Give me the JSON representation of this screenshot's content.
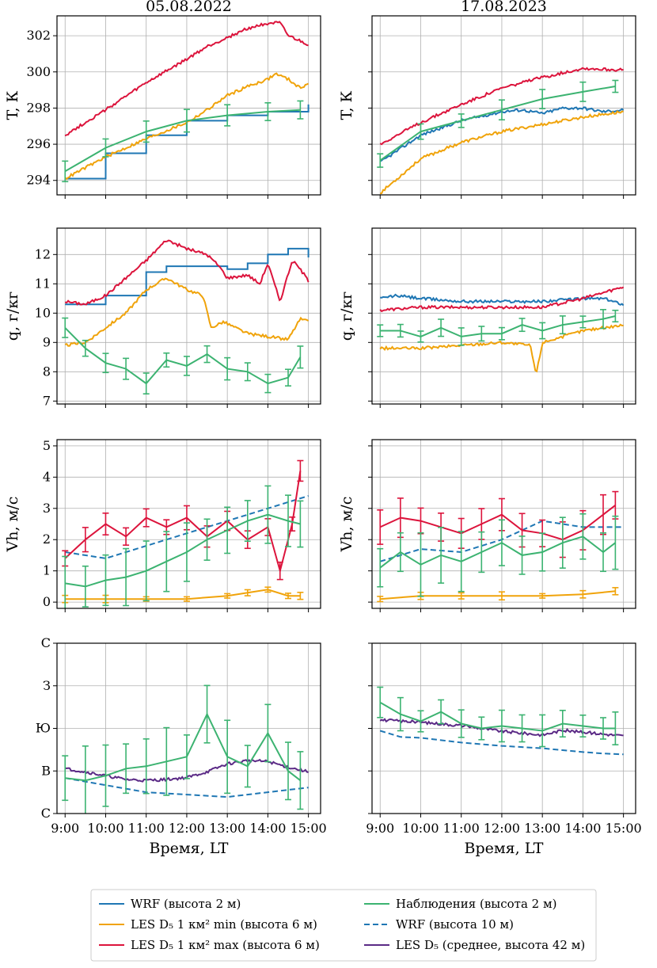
{
  "figure": {
    "columns": [
      "05.08.2022",
      "17.08.2023"
    ],
    "xlabel": "Время, LT",
    "x_ticks": [
      "9:00",
      "10:00",
      "11:00",
      "12:00",
      "13:00",
      "14:00",
      "15:00"
    ]
  },
  "colors": {
    "wrf": "#1f77b4",
    "les_min": "#f0a30a",
    "les_max": "#dc143c",
    "obs": "#3cb371",
    "les_mean": "#5b2a86",
    "grid": "#b0b0b0"
  },
  "legend": {
    "items": [
      {
        "key": "wrf",
        "label": "WRF (высота 2 м)",
        "style": "solid"
      },
      {
        "key": "les_min",
        "label": "LES D₅ 1 км² min (высота 6 м)",
        "style": "solid"
      },
      {
        "key": "les_max",
        "label": "LES D₅ 1 км² max (высота 6 м)",
        "style": "solid"
      },
      {
        "key": "obs",
        "label": "Наблюдения (высота 2 м)",
        "style": "solid"
      },
      {
        "key": "wrf10",
        "label": "WRF (высота 10 м)",
        "style": "dashed"
      },
      {
        "key": "les_mean",
        "label": "LES D₅ (среднее, высота 42 м)",
        "style": "solid"
      }
    ]
  },
  "rows": [
    {
      "ylabel": "T, К",
      "yticks": [
        "294",
        "296",
        "298",
        "300",
        "302"
      ]
    },
    {
      "ylabel": "q, г/кг",
      "yticks": [
        "7",
        "8",
        "9",
        "10",
        "11",
        "12"
      ]
    },
    {
      "ylabel": "Vh, м/с",
      "yticks": [
        "0",
        "1",
        "2",
        "3",
        "4",
        "5"
      ]
    },
    {
      "ylabel": "",
      "yticks": [
        "С",
        "В",
        "Ю",
        "З",
        "С"
      ]
    }
  ],
  "chart_data": [
    {
      "type": "line",
      "title": "05.08.2022",
      "ylabel": "T, К",
      "ylim": [
        293.2,
        303.1
      ],
      "xlim": [
        8.8,
        15.3
      ],
      "series": [
        {
          "name": "WRF (высота 2 м)",
          "key": "wrf",
          "style": "step",
          "x": [
            9,
            10,
            11,
            12,
            13,
            14,
            15
          ],
          "y": [
            294.1,
            295.5,
            296.5,
            297.3,
            297.6,
            297.8,
            298.2
          ]
        },
        {
          "name": "LES D₅ 1 км² min (высота 6 м)",
          "key": "les_min",
          "x": [
            9,
            10,
            11,
            12,
            12.5,
            13,
            13.5,
            14,
            14.2,
            14.5,
            14.8,
            15
          ],
          "y": [
            294.1,
            295.3,
            296.3,
            297.2,
            297.9,
            298.7,
            299.2,
            299.6,
            299.9,
            299.6,
            299.1,
            299.4
          ]
        },
        {
          "name": "LES D₅ 1 км² max (высота 6 м)",
          "key": "les_max",
          "x": [
            9,
            10,
            11,
            12,
            12.5,
            13,
            13.5,
            14,
            14.3,
            14.5,
            14.8,
            15
          ],
          "y": [
            296.5,
            297.9,
            299.4,
            300.7,
            301.4,
            301.9,
            302.4,
            302.7,
            302.7,
            302.0,
            301.7,
            301.5
          ]
        },
        {
          "name": "Наблюдения (высота 2 м)",
          "key": "obs",
          "errorbars": true,
          "x": [
            9,
            10,
            11,
            12,
            13,
            14,
            14.8
          ],
          "y": [
            294.5,
            295.8,
            296.7,
            297.3,
            297.6,
            297.8,
            297.9
          ],
          "err": 0.5
        }
      ]
    },
    {
      "type": "line",
      "title": "17.08.2023",
      "ylabel": "T, К",
      "ylim": [
        293.2,
        303.1
      ],
      "xlim": [
        8.8,
        15.3
      ],
      "series": [
        {
          "name": "WRF (высота 2 м)",
          "key": "wrf",
          "x": [
            9,
            10,
            11,
            12,
            12.5,
            13,
            13.5,
            14,
            14.5,
            15
          ],
          "y": [
            295.0,
            296.5,
            297.3,
            297.8,
            297.9,
            297.7,
            298.0,
            298.0,
            297.8,
            297.9
          ]
        },
        {
          "name": "LES D₅ 1 км² min (высота 6 м)",
          "key": "les_min",
          "x": [
            9,
            10,
            11,
            12,
            13,
            14,
            15
          ],
          "y": [
            293.3,
            295.2,
            296.1,
            296.7,
            297.1,
            297.5,
            297.8
          ]
        },
        {
          "name": "LES D₅ 1 км² max (высота 6 м)",
          "key": "les_max",
          "x": [
            9,
            10,
            11,
            12,
            13,
            14,
            15
          ],
          "y": [
            296.0,
            297.2,
            298.2,
            299.1,
            299.7,
            300.2,
            300.1
          ]
        },
        {
          "name": "Наблюдения (высота 2 м)",
          "key": "obs",
          "errorbars": true,
          "x": [
            9,
            10,
            11,
            12,
            13,
            14,
            14.8
          ],
          "y": [
            295.1,
            296.7,
            297.3,
            297.9,
            298.5,
            298.9,
            299.2
          ],
          "err": 0.45
        }
      ]
    },
    {
      "type": "line",
      "ylabel": "q, г/кг",
      "ylim": [
        6.9,
        12.9
      ],
      "xlim": [
        8.8,
        15.3
      ],
      "series": [
        {
          "name": "WRF (высота 2 м)",
          "key": "wrf",
          "style": "step",
          "x": [
            9,
            10,
            11,
            11.5,
            12,
            13,
            13.5,
            14,
            14.5,
            15
          ],
          "y": [
            10.3,
            10.6,
            11.4,
            11.6,
            11.6,
            11.5,
            11.7,
            12.0,
            12.2,
            11.9
          ]
        },
        {
          "name": "LES D₅ 1 км² min (высота 6 м)",
          "key": "les_min",
          "x": [
            9,
            9.5,
            10,
            10.5,
            11,
            11.5,
            12,
            12.4,
            12.6,
            12.9,
            13.2,
            13.5,
            14,
            14.5,
            14.8,
            15
          ],
          "y": [
            8.9,
            9.0,
            9.5,
            10.0,
            10.8,
            11.2,
            10.8,
            10.6,
            9.5,
            9.7,
            9.5,
            9.3,
            9.2,
            9.1,
            9.8,
            9.7
          ]
        },
        {
          "name": "LES D₅ 1 км² max (высота 6 м)",
          "key": "les_max",
          "x": [
            9,
            9.5,
            10,
            10.5,
            11,
            11.5,
            12,
            12.5,
            12.8,
            13,
            13.5,
            13.8,
            14,
            14.3,
            14.6,
            14.8,
            15
          ],
          "y": [
            10.4,
            10.3,
            10.6,
            11.2,
            11.8,
            12.5,
            12.2,
            12.0,
            11.6,
            11.2,
            11.3,
            11.0,
            11.7,
            10.4,
            11.8,
            11.5,
            11.1
          ]
        },
        {
          "name": "Наблюдения (высота 2 м)",
          "key": "obs",
          "errorbars": true,
          "x": [
            9,
            9.5,
            10,
            10.5,
            11,
            11.5,
            12,
            12.5,
            13,
            13.5,
            14,
            14.5,
            14.8
          ],
          "y": [
            9.5,
            8.8,
            8.3,
            8.1,
            7.6,
            8.4,
            8.2,
            8.6,
            8.1,
            8.0,
            7.6,
            7.8,
            8.5
          ],
          "err": 0.3
        }
      ]
    },
    {
      "type": "line",
      "ylabel": "q, г/кг",
      "ylim": [
        6.9,
        12.9
      ],
      "xlim": [
        8.8,
        15.3
      ],
      "series": [
        {
          "name": "WRF (высота 2 м)",
          "key": "wrf",
          "x": [
            9,
            9.4,
            10,
            11,
            12,
            13,
            14,
            14.5,
            15
          ],
          "y": [
            10.5,
            10.6,
            10.5,
            10.4,
            10.4,
            10.4,
            10.5,
            10.5,
            10.3
          ]
        },
        {
          "name": "LES D₅ 1 км² min (высота 6 м)",
          "key": "les_min",
          "x": [
            9,
            10,
            11,
            12,
            12.7,
            12.85,
            13,
            14,
            15
          ],
          "y": [
            8.8,
            8.8,
            8.9,
            9.0,
            8.9,
            7.9,
            9.0,
            9.4,
            9.6
          ]
        },
        {
          "name": "LES D₅ 1 км² max (высота 6 м)",
          "key": "les_max",
          "x": [
            9,
            10,
            11,
            12,
            13,
            14,
            15
          ],
          "y": [
            10.1,
            10.2,
            10.2,
            10.2,
            10.2,
            10.5,
            10.9
          ]
        },
        {
          "name": "Наблюдения (высота 2 м)",
          "key": "obs",
          "errorbars": true,
          "x": [
            9,
            9.5,
            10,
            10.5,
            11,
            11.5,
            12,
            12.5,
            13,
            13.5,
            14,
            14.5,
            14.8
          ],
          "y": [
            9.4,
            9.4,
            9.2,
            9.5,
            9.2,
            9.3,
            9.3,
            9.6,
            9.4,
            9.6,
            9.7,
            9.8,
            9.9
          ],
          "err": 0.25
        }
      ]
    },
    {
      "type": "line",
      "ylabel": "Vh, м/с",
      "ylim": [
        -0.2,
        5.2
      ],
      "xlim": [
        8.8,
        15.3
      ],
      "series": [
        {
          "name": "WRF (высота 10 м)",
          "key": "wrf",
          "style": "dashed",
          "x": [
            9,
            10,
            11,
            12,
            13,
            14,
            15
          ],
          "y": [
            1.6,
            1.4,
            1.8,
            2.2,
            2.6,
            3.0,
            3.4
          ]
        },
        {
          "name": "LES D₅ 1 км² min (высота 6 м)",
          "key": "les_min",
          "errorbars": true,
          "x": [
            9,
            10,
            11,
            12,
            13,
            13.5,
            14,
            14.5,
            14.8
          ],
          "y": [
            0.1,
            0.1,
            0.1,
            0.1,
            0.2,
            0.3,
            0.4,
            0.2,
            0.2
          ],
          "err": 0.1
        },
        {
          "name": "LES D₅ 1 км² max (высота 6 м)",
          "key": "les_max",
          "errorbars": true,
          "x": [
            9,
            9.5,
            10,
            10.5,
            11,
            11.5,
            12,
            12.5,
            13,
            13.5,
            14,
            14.3,
            14.6,
            14.8
          ],
          "y": [
            1.4,
            2.0,
            2.5,
            2.1,
            2.7,
            2.4,
            2.7,
            2.1,
            2.6,
            2.0,
            2.4,
            1.0,
            2.5,
            4.2
          ],
          "err": 0.3
        },
        {
          "name": "Наблюдения (высота 2 м)",
          "key": "obs",
          "errorbars": true,
          "x": [
            9,
            9.5,
            10,
            10.5,
            11,
            11.5,
            12,
            12.5,
            13,
            13.5,
            14,
            14.5,
            14.8
          ],
          "y": [
            0.6,
            0.5,
            0.7,
            0.8,
            1.0,
            1.3,
            1.6,
            2.0,
            2.3,
            2.6,
            2.8,
            2.6,
            2.5
          ],
          "err": 0.8
        }
      ]
    },
    {
      "type": "line",
      "ylabel": "Vh, м/с",
      "ylim": [
        -0.2,
        5.2
      ],
      "xlim": [
        8.8,
        15.3
      ],
      "series": [
        {
          "name": "WRF (высота 10 м)",
          "key": "wrf",
          "style": "dashed",
          "x": [
            9,
            10,
            11,
            12,
            13,
            13.5,
            14,
            15
          ],
          "y": [
            1.3,
            1.7,
            1.6,
            2.0,
            2.6,
            2.5,
            2.4,
            2.4
          ]
        },
        {
          "name": "LES D₅ 1 км² min (высота 6 м)",
          "key": "les_min",
          "errorbars": true,
          "x": [
            9,
            10,
            11,
            12,
            13,
            14,
            14.8
          ],
          "y": [
            0.1,
            0.2,
            0.2,
            0.2,
            0.2,
            0.25,
            0.35
          ],
          "err": 0.1
        },
        {
          "name": "LES D₅ 1 км² max (высота 6 м)",
          "key": "les_max",
          "errorbars": true,
          "x": [
            9,
            9.5,
            10,
            10.5,
            11,
            11.5,
            12,
            12.5,
            13,
            13.5,
            14,
            14.5,
            14.8
          ],
          "y": [
            2.4,
            2.7,
            2.6,
            2.4,
            2.2,
            2.5,
            2.8,
            2.3,
            2.2,
            2.0,
            2.3,
            2.8,
            3.1
          ],
          "err": 0.5
        },
        {
          "name": "Наблюдения (высота 2 м)",
          "key": "obs",
          "errorbars": true,
          "x": [
            9,
            9.5,
            10,
            10.5,
            11,
            11.5,
            12,
            12.5,
            13,
            13.5,
            14,
            14.5,
            14.8
          ],
          "y": [
            1.1,
            1.6,
            1.2,
            1.5,
            1.3,
            1.6,
            1.9,
            1.5,
            1.6,
            1.9,
            2.1,
            1.6,
            1.9
          ],
          "err": 0.8
        }
      ]
    },
    {
      "type": "line",
      "ylabel": "",
      "xlim": [
        8.8,
        15.3
      ],
      "ylim": [
        0,
        360
      ],
      "ytick_values": [
        0,
        90,
        180,
        270,
        360
      ],
      "series": [
        {
          "name": "WRF (высота 10 м)",
          "key": "wrf",
          "style": "dashed",
          "x": [
            9,
            10,
            11,
            12,
            13,
            14,
            15
          ],
          "y": [
            75,
            60,
            45,
            40,
            35,
            45,
            55
          ]
        },
        {
          "name": "LES D₅ (среднее, высота 42 м)",
          "key": "les_mean",
          "x": [
            9,
            9.5,
            10,
            10.5,
            11,
            11.5,
            12,
            12.5,
            13,
            13.5,
            14,
            14.5,
            15
          ],
          "y": [
            95,
            88,
            80,
            72,
            70,
            72,
            76,
            88,
            105,
            112,
            110,
            98,
            88
          ]
        },
        {
          "name": "Наблюдения (высота 2 м)",
          "key": "obs",
          "errorbars": true,
          "x": [
            9,
            9.5,
            10,
            10.5,
            11,
            11.5,
            12,
            12.5,
            13,
            13.5,
            14,
            14.5,
            14.8
          ],
          "y": [
            75,
            70,
            80,
            95,
            100,
            110,
            120,
            210,
            120,
            100,
            170,
            90,
            70
          ],
          "err": 60
        }
      ]
    },
    {
      "type": "line",
      "ylabel": "",
      "xlim": [
        8.8,
        15.3
      ],
      "ylim": [
        0,
        360
      ],
      "ytick_values": [
        0,
        90,
        180,
        270,
        360
      ],
      "series": [
        {
          "name": "WRF (высота 10 м)",
          "key": "wrf",
          "style": "dashed",
          "x": [
            9,
            9.5,
            10,
            11,
            12,
            13,
            14,
            14.5,
            15
          ],
          "y": [
            175,
            162,
            160,
            150,
            143,
            138,
            130,
            127,
            125
          ]
        },
        {
          "name": "LES D₅ (среднее, высота 42 м)",
          "key": "les_mean",
          "x": [
            9,
            10,
            11,
            12,
            13,
            13.5,
            14,
            14.5,
            15
          ],
          "y": [
            198,
            193,
            186,
            174,
            166,
            176,
            172,
            168,
            164
          ]
        },
        {
          "name": "Наблюдения (высота 2 м)",
          "key": "obs",
          "errorbars": true,
          "x": [
            9,
            9.5,
            10,
            10.5,
            11,
            11.5,
            12,
            12.5,
            13,
            13.5,
            14,
            14.5,
            14.8
          ],
          "y": [
            235,
            210,
            195,
            215,
            190,
            180,
            185,
            180,
            175,
            190,
            185,
            180,
            180
          ],
          "err": 30
        }
      ]
    }
  ]
}
